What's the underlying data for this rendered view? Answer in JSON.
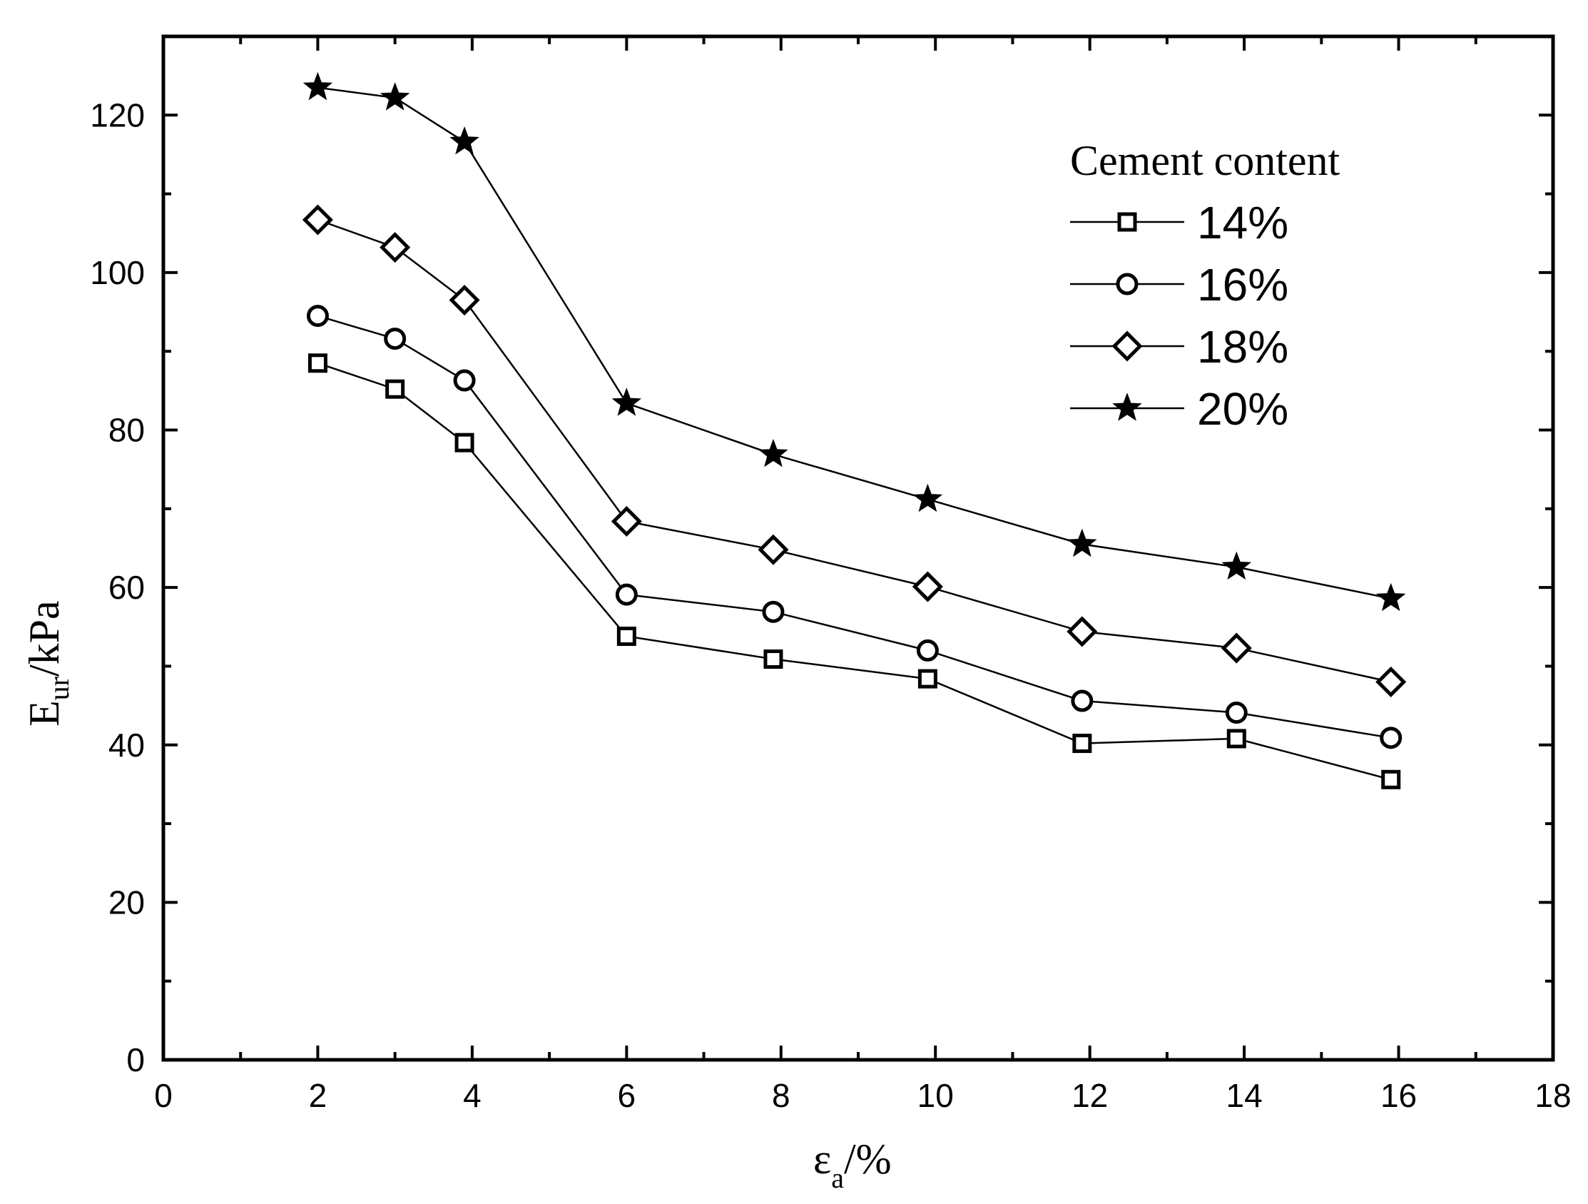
{
  "chart_data": {
    "type": "line",
    "title": "",
    "xlabel": {
      "symbol": "ε",
      "sub": "a",
      "suffix": "/%"
    },
    "ylabel": {
      "symbol": "E",
      "sub": "ur",
      "suffix": "/kPa"
    },
    "xlim": [
      0,
      18
    ],
    "ylim": [
      0,
      130
    ],
    "xticks": [
      0,
      2,
      4,
      6,
      8,
      10,
      12,
      14,
      16,
      18
    ],
    "yticks": [
      0,
      20,
      40,
      60,
      80,
      100,
      120
    ],
    "grid": false,
    "legend": {
      "title": "Cement content",
      "position": "top-right"
    },
    "series": [
      {
        "name": "14%",
        "marker": "square",
        "x": [
          2,
          3,
          3.9,
          6,
          7.9,
          9.9,
          11.9,
          13.9,
          15.9
        ],
        "y": [
          88.5,
          85.2,
          78.4,
          53.8,
          50.9,
          48.4,
          40.2,
          40.8,
          35.6
        ]
      },
      {
        "name": "16%",
        "marker": "circle",
        "x": [
          2,
          3,
          3.9,
          6,
          7.9,
          9.9,
          11.9,
          13.9,
          15.9
        ],
        "y": [
          94.5,
          91.6,
          86.3,
          59.1,
          56.9,
          52.0,
          45.6,
          44.1,
          40.9
        ]
      },
      {
        "name": "18%",
        "marker": "diamond",
        "x": [
          2,
          3,
          3.9,
          6,
          7.9,
          9.9,
          11.9,
          13.9,
          15.9
        ],
        "y": [
          106.7,
          103.2,
          96.5,
          68.4,
          64.8,
          60.1,
          54.4,
          52.3,
          48.0
        ]
      },
      {
        "name": "20%",
        "marker": "star",
        "x": [
          2,
          3,
          3.9,
          6,
          7.9,
          9.9,
          11.9,
          13.9,
          15.9
        ],
        "y": [
          123.5,
          122.2,
          116.6,
          83.4,
          76.9,
          71.2,
          65.5,
          62.6,
          58.6
        ]
      }
    ]
  }
}
